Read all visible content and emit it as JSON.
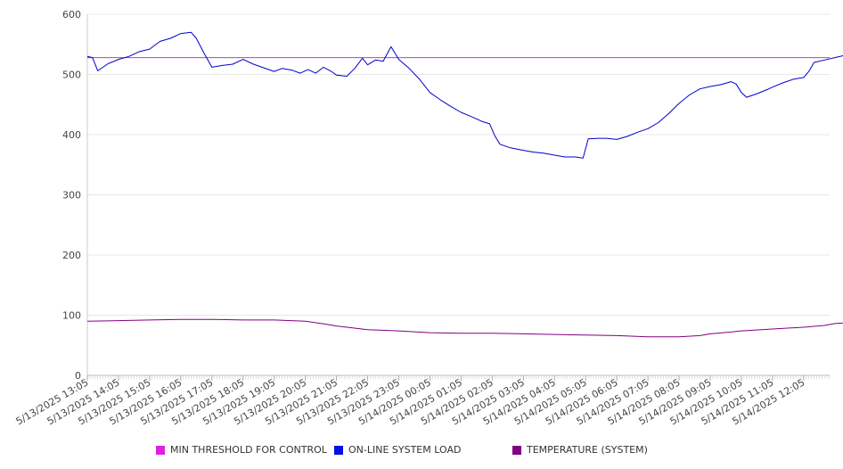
{
  "chart_data": {
    "type": "line",
    "title": "",
    "xlabel": "",
    "ylabel": "",
    "ylim": [
      0,
      600
    ],
    "yticks": [
      0,
      100,
      200,
      300,
      400,
      500,
      600
    ],
    "grid": "horizontal",
    "legend_position": "bottom",
    "x_tick_labels": [
      "5/13/2025 13:05",
      "5/13/2025 14:05",
      "5/13/2025 15:05",
      "5/13/2025 16:05",
      "5/13/2025 17:05",
      "5/13/2025 18:05",
      "5/13/2025 19:05",
      "5/13/2025 20:05",
      "5/13/2025 21:05",
      "5/13/2025 22:05",
      "5/13/2025 23:05",
      "5/14/2025 00:05",
      "5/14/2025 01:05",
      "5/14/2025 02:05",
      "5/14/2025 03:05",
      "5/14/2025 04:05",
      "5/14/2025 05:05",
      "5/14/2025 06:05",
      "5/14/2025 07:05",
      "5/14/2025 08:05",
      "5/14/2025 09:05",
      "5/14/2025 10:05",
      "5/14/2025 11:05",
      "5/14/2025 12:05"
    ],
    "series": [
      {
        "name": "MIN THRESHOLD FOR CONTROL",
        "color": "#cc33cc",
        "points": [
          [
            "5/13/2025 13:05",
            528
          ],
          [
            "5/14/2025 12:55",
            528
          ]
        ]
      },
      {
        "name": "ON-LINE SYSTEM LOAD",
        "color": "#0000cc",
        "points": [
          [
            "5/13/2025 13:05",
            530
          ],
          [
            "5/13/2025 13:15",
            528
          ],
          [
            "5/13/2025 13:25",
            506
          ],
          [
            "5/13/2025 13:45",
            518
          ],
          [
            "5/13/2025 14:05",
            525
          ],
          [
            "5/13/2025 14:25",
            530
          ],
          [
            "5/13/2025 14:45",
            538
          ],
          [
            "5/13/2025 15:05",
            542
          ],
          [
            "5/13/2025 15:25",
            555
          ],
          [
            "5/13/2025 15:45",
            560
          ],
          [
            "5/13/2025 16:05",
            568
          ],
          [
            "5/13/2025 16:25",
            570
          ],
          [
            "5/13/2025 16:35",
            560
          ],
          [
            "5/13/2025 16:50",
            535
          ],
          [
            "5/13/2025 17:05",
            512
          ],
          [
            "5/13/2025 17:25",
            515
          ],
          [
            "5/13/2025 17:45",
            517
          ],
          [
            "5/13/2025 18:05",
            525
          ],
          [
            "5/13/2025 18:25",
            517
          ],
          [
            "5/13/2025 18:45",
            511
          ],
          [
            "5/13/2025 19:05",
            505
          ],
          [
            "5/13/2025 19:20",
            510
          ],
          [
            "5/13/2025 19:40",
            507
          ],
          [
            "5/13/2025 19:55",
            502
          ],
          [
            "5/13/2025 20:10",
            508
          ],
          [
            "5/13/2025 20:25",
            502
          ],
          [
            "5/13/2025 20:40",
            512
          ],
          [
            "5/13/2025 20:55",
            505
          ],
          [
            "5/13/2025 21:05",
            499
          ],
          [
            "5/13/2025 21:25",
            497
          ],
          [
            "5/13/2025 21:40",
            510
          ],
          [
            "5/13/2025 21:55",
            527
          ],
          [
            "5/13/2025 22:05",
            516
          ],
          [
            "5/13/2025 22:20",
            524
          ],
          [
            "5/13/2025 22:35",
            522
          ],
          [
            "5/13/2025 22:50",
            546
          ],
          [
            "5/13/2025 23:05",
            525
          ],
          [
            "5/13/2025 23:25",
            510
          ],
          [
            "5/13/2025 23:45",
            492
          ],
          [
            "5/14/2025 00:05",
            470
          ],
          [
            "5/14/2025 00:25",
            458
          ],
          [
            "5/14/2025 00:45",
            447
          ],
          [
            "5/14/2025 01:05",
            437
          ],
          [
            "5/14/2025 01:25",
            430
          ],
          [
            "5/14/2025 01:45",
            422
          ],
          [
            "5/14/2025 02:00",
            418
          ],
          [
            "5/14/2025 02:10",
            398
          ],
          [
            "5/14/2025 02:20",
            384
          ],
          [
            "5/14/2025 02:40",
            378
          ],
          [
            "5/14/2025 03:05",
            374
          ],
          [
            "5/14/2025 03:25",
            371
          ],
          [
            "5/14/2025 03:45",
            369
          ],
          [
            "5/14/2025 04:05",
            366
          ],
          [
            "5/14/2025 04:25",
            363
          ],
          [
            "5/14/2025 04:45",
            363
          ],
          [
            "5/14/2025 05:00",
            361
          ],
          [
            "5/14/2025 05:10",
            393
          ],
          [
            "5/14/2025 05:30",
            394
          ],
          [
            "5/14/2025 05:45",
            394
          ],
          [
            "5/14/2025 06:05",
            392
          ],
          [
            "5/14/2025 06:25",
            397
          ],
          [
            "5/14/2025 06:45",
            404
          ],
          [
            "5/14/2025 07:05",
            410
          ],
          [
            "5/14/2025 07:25",
            420
          ],
          [
            "5/14/2025 07:45",
            435
          ],
          [
            "5/14/2025 08:05",
            452
          ],
          [
            "5/14/2025 08:25",
            466
          ],
          [
            "5/14/2025 08:45",
            476
          ],
          [
            "5/14/2025 09:05",
            480
          ],
          [
            "5/14/2025 09:25",
            483
          ],
          [
            "5/14/2025 09:45",
            488
          ],
          [
            "5/14/2025 09:55",
            484
          ],
          [
            "5/14/2025 10:05",
            470
          ],
          [
            "5/14/2025 10:15",
            462
          ],
          [
            "5/14/2025 10:35",
            468
          ],
          [
            "5/14/2025 10:55",
            475
          ],
          [
            "5/14/2025 11:05",
            479
          ],
          [
            "5/14/2025 11:25",
            486
          ],
          [
            "5/14/2025 11:45",
            492
          ],
          [
            "5/14/2025 12:05",
            495
          ],
          [
            "5/14/2025 12:15",
            505
          ],
          [
            "5/14/2025 12:25",
            520
          ],
          [
            "5/14/2025 12:45",
            524
          ],
          [
            "5/14/2025 13:05",
            528
          ],
          [
            "5/14/2025 13:25",
            532
          ],
          [
            "5/14/2025 13:45",
            534
          ],
          [
            "5/14/2025 13:55",
            540
          ]
        ]
      },
      {
        "name": "TEMPERATURE (SYSTEM)",
        "color": "#800080",
        "points": [
          [
            "5/13/2025 13:05",
            90
          ],
          [
            "5/13/2025 14:05",
            91
          ],
          [
            "5/13/2025 15:05",
            92
          ],
          [
            "5/13/2025 16:05",
            93
          ],
          [
            "5/13/2025 17:05",
            93
          ],
          [
            "5/13/2025 18:05",
            92
          ],
          [
            "5/13/2025 19:05",
            92
          ],
          [
            "5/13/2025 20:05",
            90
          ],
          [
            "5/13/2025 20:45",
            85
          ],
          [
            "5/13/2025 21:05",
            82
          ],
          [
            "5/13/2025 21:45",
            78
          ],
          [
            "5/13/2025 22:05",
            76
          ],
          [
            "5/13/2025 23:05",
            74
          ],
          [
            "5/14/2025 00:05",
            71
          ],
          [
            "5/14/2025 01:05",
            70
          ],
          [
            "5/14/2025 02:05",
            70
          ],
          [
            "5/14/2025 03:05",
            69
          ],
          [
            "5/14/2025 04:05",
            68
          ],
          [
            "5/14/2025 05:05",
            67
          ],
          [
            "5/14/2025 06:05",
            66
          ],
          [
            "5/14/2025 07:05",
            64
          ],
          [
            "5/14/2025 08:05",
            64
          ],
          [
            "5/14/2025 08:45",
            66
          ],
          [
            "5/14/2025 09:05",
            69
          ],
          [
            "5/14/2025 09:45",
            72
          ],
          [
            "5/14/2025 10:05",
            74
          ],
          [
            "5/14/2025 11:05",
            77
          ],
          [
            "5/14/2025 12:05",
            80
          ],
          [
            "5/14/2025 12:45",
            83
          ],
          [
            "5/14/2025 13:05",
            86
          ],
          [
            "5/14/2025 13:55",
            89
          ]
        ]
      }
    ]
  }
}
